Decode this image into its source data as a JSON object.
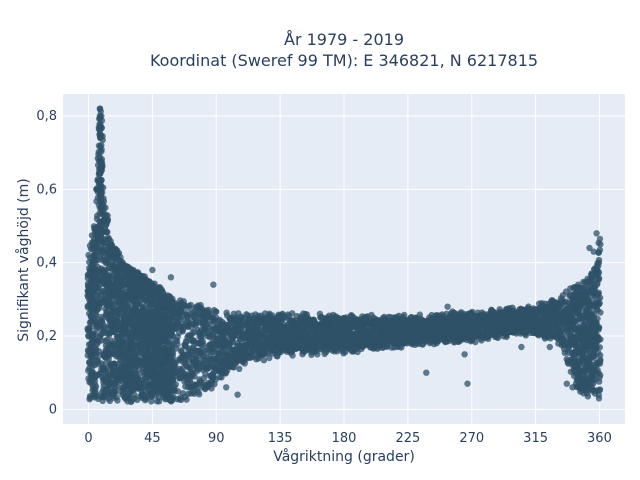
{
  "chart_data": {
    "type": "scatter",
    "title_line1": "År 1979 - 2019",
    "title_line2": "Koordinat (Sweref 99 TM): E 346821, N 6217815",
    "xlabel": "Vågriktning (grader)",
    "ylabel": "Signifikant våghöjd (m)",
    "xlim": [
      -18,
      378
    ],
    "ylim": [
      -0.04,
      0.86
    ],
    "x_ticks": [
      0,
      45,
      90,
      135,
      180,
      225,
      270,
      315,
      360
    ],
    "x_tick_labels": [
      "0",
      "45",
      "90",
      "135",
      "180",
      "225",
      "270",
      "315",
      "360"
    ],
    "y_ticks": [
      0,
      0.2,
      0.4,
      0.6,
      0.8
    ],
    "y_tick_labels": [
      "0",
      "0,2",
      "0,4",
      "0,6",
      "0,8"
    ],
    "grid": true,
    "colors": {
      "marker": "#2f5168",
      "plot_bg": "#e5ecf6",
      "grid": "#ffffff"
    },
    "density_envelope": [
      {
        "x": 0,
        "y_min": 0.02,
        "y_max": 0.43
      },
      {
        "x": 5,
        "y_min": 0.02,
        "y_max": 0.52
      },
      {
        "x": 8,
        "y_min": 0.02,
        "y_max": 0.82
      },
      {
        "x": 10,
        "y_min": 0.02,
        "y_max": 0.62
      },
      {
        "x": 15,
        "y_min": 0.02,
        "y_max": 0.47
      },
      {
        "x": 25,
        "y_min": 0.02,
        "y_max": 0.4
      },
      {
        "x": 45,
        "y_min": 0.02,
        "y_max": 0.35
      },
      {
        "x": 60,
        "y_min": 0.02,
        "y_max": 0.3
      },
      {
        "x": 75,
        "y_min": 0.03,
        "y_max": 0.29
      },
      {
        "x": 90,
        "y_min": 0.06,
        "y_max": 0.27
      },
      {
        "x": 110,
        "y_min": 0.12,
        "y_max": 0.27
      },
      {
        "x": 135,
        "y_min": 0.14,
        "y_max": 0.27
      },
      {
        "x": 180,
        "y_min": 0.15,
        "y_max": 0.26
      },
      {
        "x": 225,
        "y_min": 0.17,
        "y_max": 0.26
      },
      {
        "x": 270,
        "y_min": 0.18,
        "y_max": 0.27
      },
      {
        "x": 300,
        "y_min": 0.2,
        "y_max": 0.28
      },
      {
        "x": 315,
        "y_min": 0.2,
        "y_max": 0.29
      },
      {
        "x": 330,
        "y_min": 0.18,
        "y_max": 0.31
      },
      {
        "x": 345,
        "y_min": 0.05,
        "y_max": 0.34
      },
      {
        "x": 352,
        "y_min": 0.02,
        "y_max": 0.36
      },
      {
        "x": 358,
        "y_min": 0.02,
        "y_max": 0.4
      },
      {
        "x": 360,
        "y_min": 0.02,
        "y_max": 0.48
      }
    ],
    "outliers": [
      {
        "x": 8,
        "y": 0.82
      },
      {
        "x": 9,
        "y": 0.8
      },
      {
        "x": 8,
        "y": 0.76
      },
      {
        "x": 9,
        "y": 0.72
      },
      {
        "x": 45,
        "y": 0.38
      },
      {
        "x": 58,
        "y": 0.36
      },
      {
        "x": 88,
        "y": 0.34
      },
      {
        "x": 97,
        "y": 0.06
      },
      {
        "x": 105,
        "y": 0.04
      },
      {
        "x": 238,
        "y": 0.1
      },
      {
        "x": 253,
        "y": 0.28
      },
      {
        "x": 265,
        "y": 0.15
      },
      {
        "x": 267,
        "y": 0.07
      },
      {
        "x": 305,
        "y": 0.17
      },
      {
        "x": 325,
        "y": 0.17
      },
      {
        "x": 353,
        "y": 0.44
      },
      {
        "x": 356,
        "y": 0.43
      },
      {
        "x": 358,
        "y": 0.48
      },
      {
        "x": 348,
        "y": 0.33
      },
      {
        "x": 343,
        "y": 0.12
      },
      {
        "x": 337,
        "y": 0.07
      },
      {
        "x": 341,
        "y": 0.06
      }
    ]
  }
}
